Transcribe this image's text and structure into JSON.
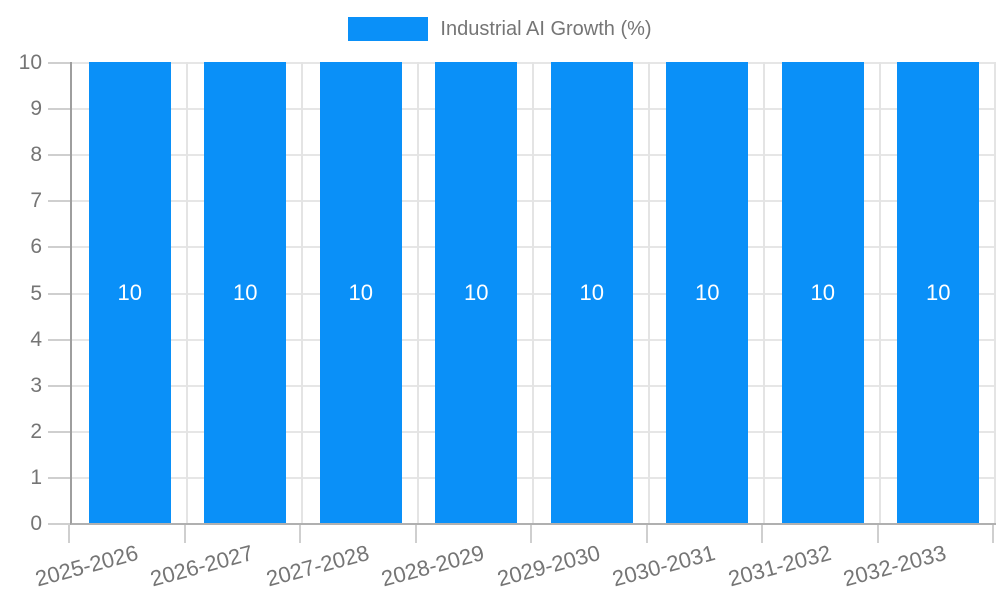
{
  "legend": {
    "label": "Industrial AI Growth (%)",
    "swatch_color": "#0a90f8"
  },
  "chart_data": {
    "type": "bar",
    "title": "Industrial AI Growth (%)",
    "categories": [
      "2025-2026",
      "2026-2027",
      "2027-2028",
      "2028-2029",
      "2029-2030",
      "2030-2031",
      "2031-2032",
      "2032-2033"
    ],
    "series": [
      {
        "name": "Industrial AI Growth (%)",
        "values": [
          10,
          10,
          10,
          10,
          10,
          10,
          10,
          10
        ]
      }
    ],
    "bar_value_labels": [
      "10",
      "10",
      "10",
      "10",
      "10",
      "10",
      "10",
      "10"
    ],
    "xlabel": "",
    "ylabel": "",
    "ylim": [
      0,
      10
    ],
    "yticks": [
      0,
      1,
      2,
      3,
      4,
      5,
      6,
      7,
      8,
      9,
      10
    ],
    "grid": true,
    "legend_position": "top",
    "x_label_rotation_deg": -15,
    "colors": {
      "bar": "#0a90f8",
      "bar_label_text": "#ffffff",
      "axis_text": "#757575",
      "legend_text": "#757575",
      "hgridline": "#e6e6e6",
      "vgridline": "#e4e4e4",
      "y_axis_line": "#9e9e9e",
      "baseline": "#b0b0b0",
      "tick": "#cfcfcf",
      "background": "#ffffff"
    }
  }
}
